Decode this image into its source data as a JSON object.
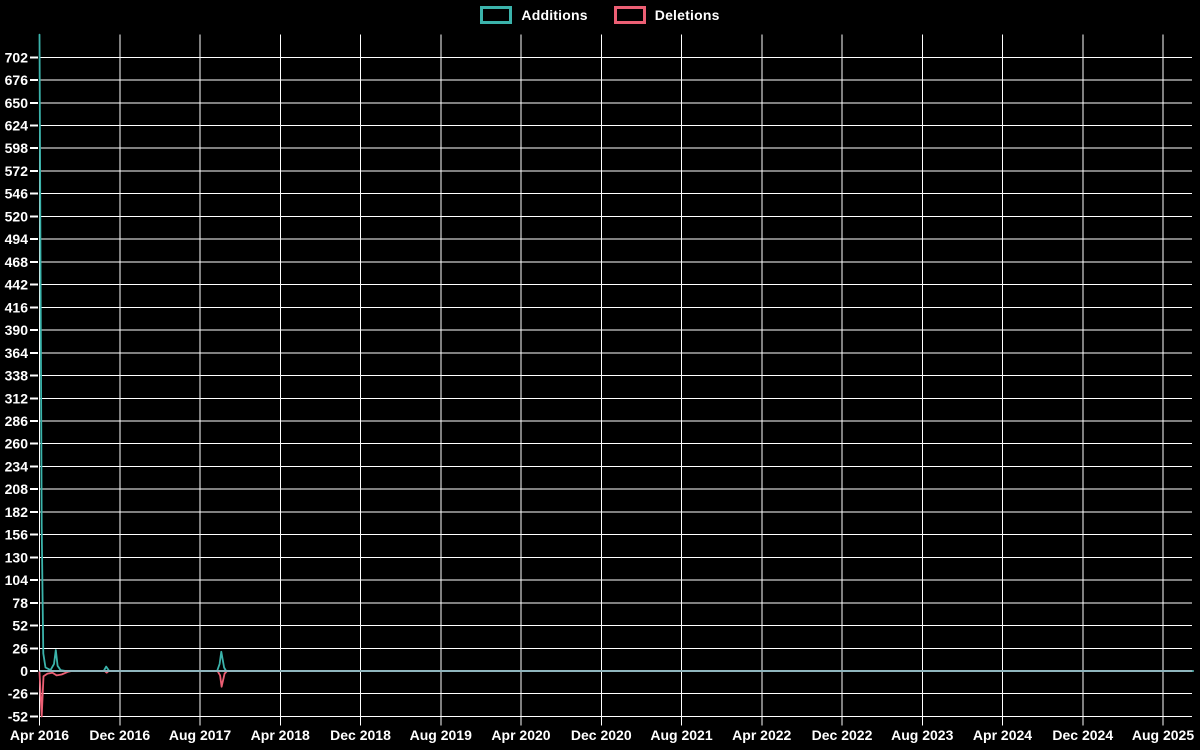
{
  "chart_data": {
    "type": "line",
    "title": "",
    "legend_position": "top-center",
    "background_color": "#000000",
    "text_color": "#ffffff",
    "grid_color": "#ffffff",
    "zero_line_color": "#8fb5bd",
    "grid": "on",
    "x_unit": "months since Apr 2016 (8-month tick interval)",
    "x_range_months": [
      0,
      115
    ],
    "y_range": [
      -52,
      728
    ],
    "y_tick_step": 26,
    "y_ticks": [
      -52,
      -26,
      0,
      26,
      52,
      78,
      104,
      130,
      156,
      182,
      208,
      234,
      260,
      286,
      312,
      338,
      364,
      390,
      416,
      442,
      468,
      494,
      520,
      546,
      572,
      598,
      624,
      650,
      676,
      702
    ],
    "x_ticks": [
      {
        "label": "Apr 2016",
        "month": 0
      },
      {
        "label": "Dec 2016",
        "month": 8
      },
      {
        "label": "Aug 2017",
        "month": 16
      },
      {
        "label": "Apr 2018",
        "month": 24
      },
      {
        "label": "Dec 2018",
        "month": 32
      },
      {
        "label": "Aug 2019",
        "month": 40
      },
      {
        "label": "Apr 2020",
        "month": 48
      },
      {
        "label": "Dec 2020",
        "month": 56
      },
      {
        "label": "Aug 2021",
        "month": 64
      },
      {
        "label": "Apr 2022",
        "month": 72
      },
      {
        "label": "Dec 2022",
        "month": 80
      },
      {
        "label": "Aug 2023",
        "month": 88
      },
      {
        "label": "Apr 2024",
        "month": 96
      },
      {
        "label": "Dec 2024",
        "month": 104
      },
      {
        "label": "Aug 2025",
        "month": 112
      }
    ],
    "series": [
      {
        "name": "Additions",
        "color": "#3bb3ab",
        "points": [
          [
            0.0,
            728
          ],
          [
            0.22,
            165
          ],
          [
            0.38,
            20
          ],
          [
            0.6,
            4
          ],
          [
            1.1,
            1
          ],
          [
            1.45,
            8
          ],
          [
            1.62,
            24
          ],
          [
            1.8,
            6
          ],
          [
            2.1,
            1
          ],
          [
            2.6,
            0
          ],
          [
            6.4,
            0
          ],
          [
            6.65,
            5
          ],
          [
            6.95,
            0
          ],
          [
            17.7,
            0
          ],
          [
            17.95,
            8
          ],
          [
            18.12,
            22
          ],
          [
            18.4,
            4
          ],
          [
            18.6,
            0
          ],
          [
            115,
            0
          ]
        ]
      },
      {
        "name": "Deletions",
        "color": "#ec5f74",
        "points": [
          [
            0.0,
            -1
          ],
          [
            0.22,
            -52
          ],
          [
            0.4,
            -6
          ],
          [
            0.8,
            -3
          ],
          [
            1.3,
            -2
          ],
          [
            1.7,
            -5
          ],
          [
            2.2,
            -4
          ],
          [
            2.8,
            -1
          ],
          [
            3.2,
            0
          ],
          [
            6.5,
            0
          ],
          [
            6.7,
            -2
          ],
          [
            6.9,
            0
          ],
          [
            17.75,
            0
          ],
          [
            18.0,
            -5
          ],
          [
            18.15,
            -18
          ],
          [
            18.45,
            -3
          ],
          [
            18.7,
            0
          ],
          [
            115,
            0
          ]
        ]
      }
    ]
  }
}
